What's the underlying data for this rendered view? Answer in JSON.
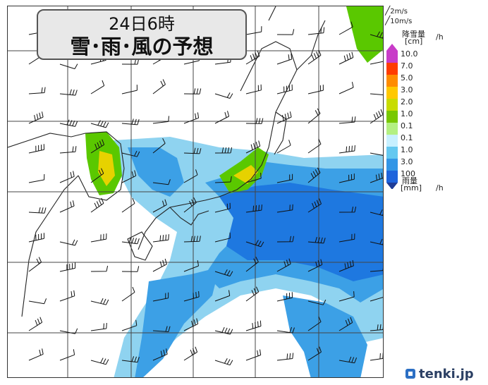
{
  "title": {
    "line1": "24日6時",
    "line2": "雪･雨･風の予想"
  },
  "legend": {
    "wind_keys": [
      "2m/s",
      "10m/s"
    ],
    "snow_title": "降雪量",
    "snow_unit": "[cm]",
    "per_hour": "/h",
    "rain_title": "雨量",
    "rain_unit": "[mm]",
    "snow_levels": [
      {
        "label": "10.0",
        "color": "#c83cc8"
      },
      {
        "label": "7.0",
        "color": "#ff3c00"
      },
      {
        "label": "5.0",
        "color": "#ff8c00"
      },
      {
        "label": "3.0",
        "color": "#ffc800"
      },
      {
        "label": "2.0",
        "color": "#c8dc00"
      },
      {
        "label": "1.0",
        "color": "#78c800"
      },
      {
        "label": "0.1",
        "color": "#b4f082"
      }
    ],
    "rain_levels": [
      {
        "label": "0.1",
        "color": "#c8f0ff"
      },
      {
        "label": "1.0",
        "color": "#64c8f0"
      },
      {
        "label": "3.0",
        "color": "#3296e6"
      },
      {
        "label": "100",
        "color": "#1e64dc"
      }
    ],
    "top_arrow_color": "#c83cc8",
    "bottom_arrow_color": "#1e3c96"
  },
  "colors": {
    "light_rain": "#8fd3f0",
    "mid_rain": "#3ca0e6",
    "heavy_rain": "#1e78e0",
    "snow_green": "#5ac800",
    "snow_yellow": "#e6d200",
    "coast": "#222222",
    "grid": "#444444"
  },
  "brand": "tenki.jp"
}
